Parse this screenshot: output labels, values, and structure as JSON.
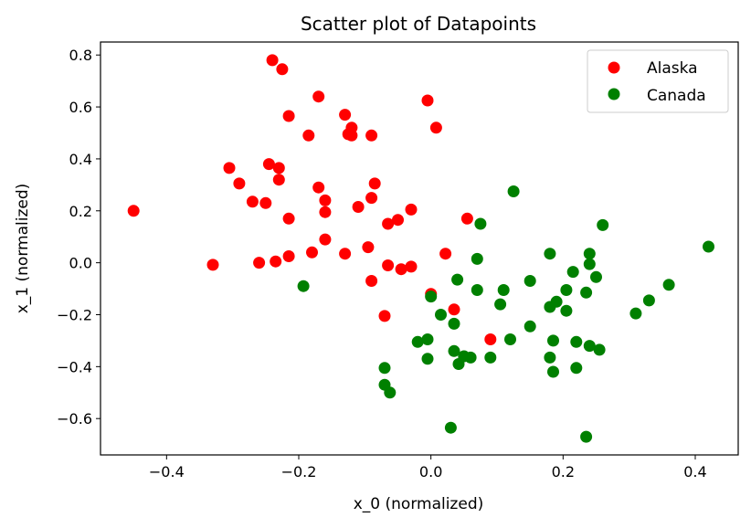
{
  "chart_data": {
    "type": "scatter",
    "title": "Scatter plot of Datapoints",
    "xlabel": "x_0 (normalized)",
    "ylabel": "x_1 (normalized)",
    "xlim": [
      -0.5,
      0.465
    ],
    "ylim": [
      -0.74,
      0.85
    ],
    "xticks": [
      -0.4,
      -0.2,
      0.0,
      0.2,
      0.4
    ],
    "xtick_labels": [
      "−0.4",
      "−0.2",
      "0.0",
      "0.2",
      "0.4"
    ],
    "yticks": [
      -0.6,
      -0.4,
      -0.2,
      0.0,
      0.2,
      0.4,
      0.6,
      0.8
    ],
    "ytick_labels": [
      "−0.6",
      "−0.4",
      "−0.2",
      "0.0",
      "0.2",
      "0.4",
      "0.6",
      "0.8"
    ],
    "grid": false,
    "legend_position": "top-right",
    "series": [
      {
        "name": "Alaska",
        "color": "#ff0000",
        "points": [
          [
            -0.24,
            0.78
          ],
          [
            -0.225,
            0.745
          ],
          [
            -0.17,
            0.64
          ],
          [
            -0.005,
            0.625
          ],
          [
            -0.215,
            0.565
          ],
          [
            -0.13,
            0.57
          ],
          [
            -0.12,
            0.52
          ],
          [
            0.008,
            0.52
          ],
          [
            -0.185,
            0.49
          ],
          [
            -0.125,
            0.495
          ],
          [
            -0.12,
            0.49
          ],
          [
            -0.09,
            0.49
          ],
          [
            -0.305,
            0.365
          ],
          [
            -0.245,
            0.38
          ],
          [
            -0.23,
            0.365
          ],
          [
            -0.29,
            0.305
          ],
          [
            -0.23,
            0.32
          ],
          [
            -0.085,
            0.305
          ],
          [
            -0.17,
            0.29
          ],
          [
            -0.27,
            0.235
          ],
          [
            -0.25,
            0.23
          ],
          [
            -0.16,
            0.24
          ],
          [
            -0.09,
            0.25
          ],
          [
            -0.45,
            0.2
          ],
          [
            -0.11,
            0.215
          ],
          [
            -0.03,
            0.205
          ],
          [
            -0.16,
            0.195
          ],
          [
            -0.215,
            0.17
          ],
          [
            -0.05,
            0.165
          ],
          [
            -0.065,
            0.15
          ],
          [
            0.055,
            0.17
          ],
          [
            -0.16,
            0.09
          ],
          [
            -0.095,
            0.06
          ],
          [
            -0.18,
            0.04
          ],
          [
            -0.13,
            0.035
          ],
          [
            -0.215,
            0.025
          ],
          [
            0.022,
            0.035
          ],
          [
            -0.33,
            -0.008
          ],
          [
            -0.26,
            0.0
          ],
          [
            -0.235,
            0.005
          ],
          [
            -0.065,
            -0.01
          ],
          [
            -0.03,
            -0.015
          ],
          [
            -0.045,
            -0.025
          ],
          [
            -0.09,
            -0.07
          ],
          [
            0.0,
            -0.12
          ],
          [
            0.035,
            -0.18
          ],
          [
            -0.07,
            -0.205
          ],
          [
            0.09,
            -0.295
          ]
        ]
      },
      {
        "name": "Canada",
        "color": "#008000",
        "points": [
          [
            0.125,
            0.275
          ],
          [
            0.075,
            0.15
          ],
          [
            0.26,
            0.145
          ],
          [
            0.42,
            0.062
          ],
          [
            0.07,
            0.015
          ],
          [
            0.18,
            0.035
          ],
          [
            0.24,
            0.035
          ],
          [
            0.24,
            -0.005
          ],
          [
            0.215,
            -0.035
          ],
          [
            0.25,
            -0.055
          ],
          [
            0.04,
            -0.065
          ],
          [
            0.15,
            -0.07
          ],
          [
            0.36,
            -0.085
          ],
          [
            -0.193,
            -0.09
          ],
          [
            0.07,
            -0.105
          ],
          [
            0.11,
            -0.105
          ],
          [
            0.205,
            -0.105
          ],
          [
            0.235,
            -0.115
          ],
          [
            0.0,
            -0.13
          ],
          [
            0.33,
            -0.145
          ],
          [
            0.19,
            -0.15
          ],
          [
            0.105,
            -0.16
          ],
          [
            0.18,
            -0.17
          ],
          [
            0.205,
            -0.185
          ],
          [
            0.31,
            -0.195
          ],
          [
            0.015,
            -0.2
          ],
          [
            0.035,
            -0.235
          ],
          [
            0.15,
            -0.245
          ],
          [
            -0.005,
            -0.295
          ],
          [
            -0.02,
            -0.305
          ],
          [
            0.185,
            -0.3
          ],
          [
            0.12,
            -0.295
          ],
          [
            0.22,
            -0.305
          ],
          [
            0.24,
            -0.32
          ],
          [
            0.255,
            -0.335
          ],
          [
            0.035,
            -0.34
          ],
          [
            0.05,
            -0.36
          ],
          [
            0.06,
            -0.365
          ],
          [
            0.09,
            -0.365
          ],
          [
            0.18,
            -0.365
          ],
          [
            -0.005,
            -0.37
          ],
          [
            0.042,
            -0.39
          ],
          [
            0.22,
            -0.405
          ],
          [
            -0.07,
            -0.405
          ],
          [
            0.185,
            -0.42
          ],
          [
            -0.07,
            -0.47
          ],
          [
            -0.062,
            -0.5
          ],
          [
            0.03,
            -0.635
          ],
          [
            0.235,
            -0.67
          ]
        ]
      }
    ]
  }
}
